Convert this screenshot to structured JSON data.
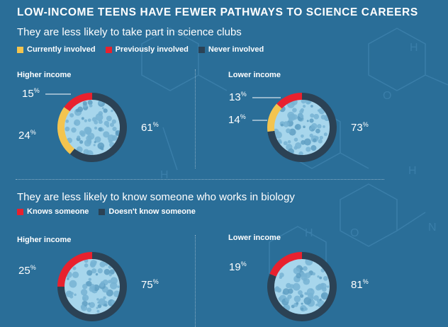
{
  "title": "LOW-INCOME TEENS HAVE FEWER PATHWAYS TO SCIENCE CAREERS",
  "colors": {
    "background": "#2a6e98",
    "currently": "#f3c44f",
    "previously": "#e8212e",
    "never": "#2b4255",
    "center": "#a7d6ec",
    "dots": "#77b3d3"
  },
  "sections": [
    {
      "subtitle": "They are less likely to take part in science clubs",
      "legend": [
        {
          "label": "Currently involved",
          "color": "#f3c44f"
        },
        {
          "label": "Previously involved",
          "color": "#e8212e"
        },
        {
          "label": "Never involved",
          "color": "#2b4255"
        }
      ]
    },
    {
      "subtitle": "They are less likely to know someone who works in biology",
      "legend": [
        {
          "label": "Knows someone",
          "color": "#e8212e"
        },
        {
          "label": "Doesn't know someone",
          "color": "#2b4255"
        }
      ]
    }
  ],
  "chart_data": [
    {
      "type": "pie",
      "title": "Higher income",
      "categories": [
        "Currently involved",
        "Previously involved",
        "Never involved"
      ],
      "values": [
        24,
        15,
        61
      ],
      "labels": [
        "24",
        "15",
        "61"
      ]
    },
    {
      "type": "pie",
      "title": "Lower income",
      "categories": [
        "Currently involved",
        "Previously involved",
        "Never involved"
      ],
      "values": [
        14,
        13,
        73
      ],
      "labels": [
        "14",
        "13",
        "73"
      ]
    },
    {
      "type": "pie",
      "title": "Higher income",
      "categories": [
        "Knows someone",
        "Doesn't know someone"
      ],
      "values": [
        25,
        75
      ],
      "labels": [
        "25",
        "75"
      ]
    },
    {
      "type": "pie",
      "title": "Lower income",
      "categories": [
        "Knows someone",
        "Doesn't know someone"
      ],
      "values": [
        19,
        81
      ],
      "labels": [
        "19",
        "81"
      ]
    }
  ],
  "percent_sign": "%"
}
